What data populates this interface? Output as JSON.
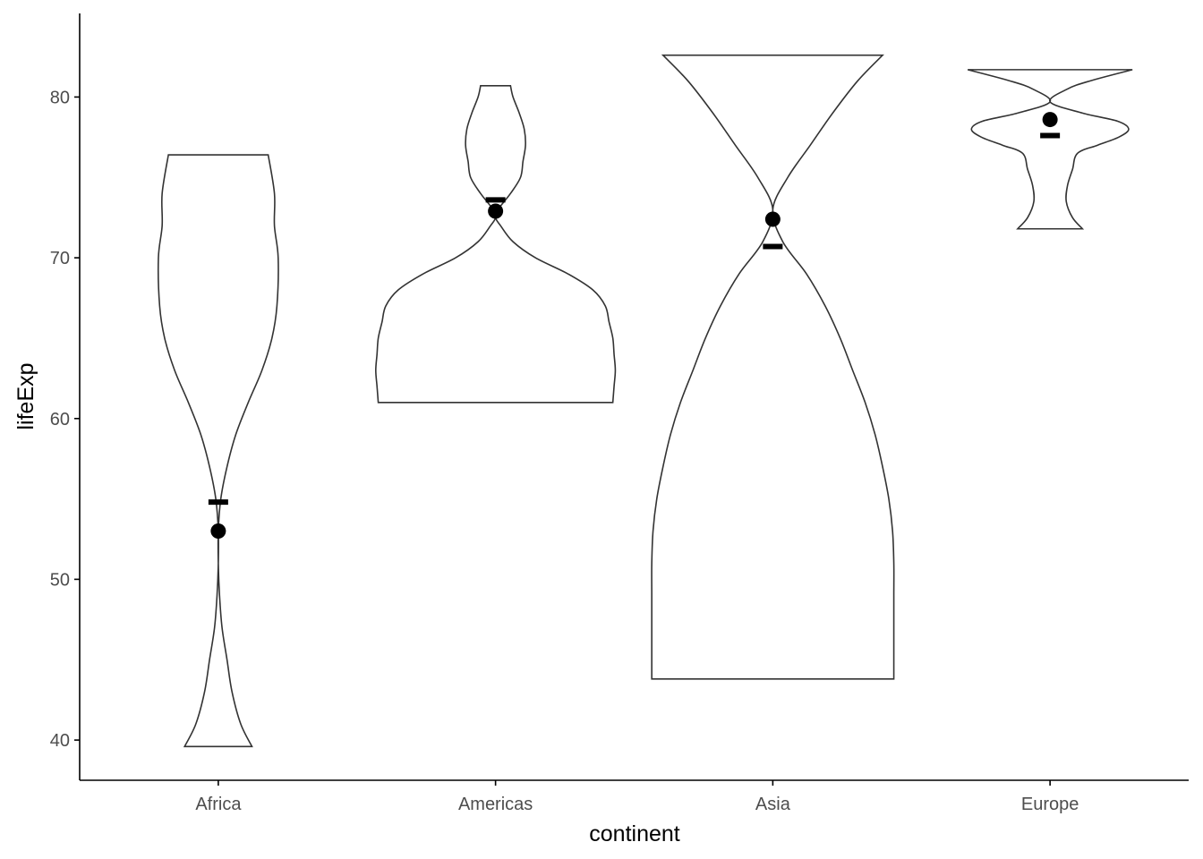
{
  "chart_data": {
    "type": "violin",
    "xlabel": "continent",
    "ylabel": "lifeExp",
    "categories": [
      "Africa",
      "Americas",
      "Asia",
      "Europe"
    ],
    "ylim": [
      37.5,
      85.2
    ],
    "yticks": [
      40,
      50,
      60,
      70,
      80
    ],
    "grid": false,
    "groups": [
      {
        "name": "Africa",
        "min": 39.6,
        "max": 76.4,
        "median": 54.8,
        "mean": 53.0,
        "density": [
          [
            39.6,
            0.27
          ],
          [
            41,
            0.18
          ],
          [
            43,
            0.11
          ],
          [
            45,
            0.07
          ],
          [
            47,
            0.03
          ],
          [
            49,
            0.01
          ],
          [
            51,
            0.0
          ],
          [
            53,
            0.0
          ],
          [
            55,
            0.02
          ],
          [
            57,
            0.07
          ],
          [
            59,
            0.14
          ],
          [
            61,
            0.24
          ],
          [
            63,
            0.35
          ],
          [
            65,
            0.43
          ],
          [
            67,
            0.47
          ],
          [
            70,
            0.48
          ],
          [
            72,
            0.45
          ],
          [
            74,
            0.45
          ],
          [
            76.4,
            0.4
          ]
        ]
      },
      {
        "name": "Americas",
        "min": 61.0,
        "max": 80.7,
        "median": 73.6,
        "mean": 72.9,
        "density": [
          [
            61.0,
            0.94
          ],
          [
            62,
            0.95
          ],
          [
            63,
            0.96
          ],
          [
            64,
            0.95
          ],
          [
            65,
            0.94
          ],
          [
            66,
            0.91
          ],
          [
            67,
            0.88
          ],
          [
            68,
            0.78
          ],
          [
            69,
            0.58
          ],
          [
            70,
            0.32
          ],
          [
            71,
            0.14
          ],
          [
            72,
            0.04
          ],
          [
            72.5,
            0.0
          ],
          [
            73,
            0.02
          ],
          [
            74,
            0.12
          ],
          [
            75,
            0.2
          ],
          [
            76,
            0.22
          ],
          [
            77,
            0.24
          ],
          [
            78,
            0.23
          ],
          [
            79,
            0.19
          ],
          [
            80,
            0.14
          ],
          [
            80.7,
            0.12
          ]
        ]
      },
      {
        "name": "Asia",
        "min": 43.8,
        "max": 82.6,
        "median": 70.7,
        "mean": 72.4,
        "density": [
          [
            43.8,
            0.97
          ],
          [
            45,
            0.97
          ],
          [
            47,
            0.97
          ],
          [
            49,
            0.97
          ],
          [
            51,
            0.97
          ],
          [
            53,
            0.96
          ],
          [
            55,
            0.93
          ],
          [
            57,
            0.88
          ],
          [
            59,
            0.82
          ],
          [
            61,
            0.74
          ],
          [
            63,
            0.64
          ],
          [
            65,
            0.54
          ],
          [
            67,
            0.42
          ],
          [
            69,
            0.27
          ],
          [
            71,
            0.08
          ],
          [
            73,
            0.0
          ],
          [
            75,
            0.12
          ],
          [
            77,
            0.3
          ],
          [
            79,
            0.48
          ],
          [
            81,
            0.68
          ],
          [
            82.6,
            0.88
          ]
        ]
      },
      {
        "name": "Europe",
        "min": 71.8,
        "max": 81.7,
        "median": 77.6,
        "mean": 78.6,
        "density": [
          [
            71.8,
            0.26
          ],
          [
            72.5,
            0.18
          ],
          [
            73.5,
            0.13
          ],
          [
            74.5,
            0.14
          ],
          [
            75.5,
            0.18
          ],
          [
            76.5,
            0.22
          ],
          [
            77,
            0.38
          ],
          [
            77.5,
            0.55
          ],
          [
            78,
            0.63
          ],
          [
            78.5,
            0.54
          ],
          [
            79,
            0.26
          ],
          [
            79.7,
            0.0
          ],
          [
            80.5,
            0.14
          ],
          [
            81,
            0.32
          ],
          [
            81.7,
            0.66
          ]
        ]
      }
    ]
  }
}
